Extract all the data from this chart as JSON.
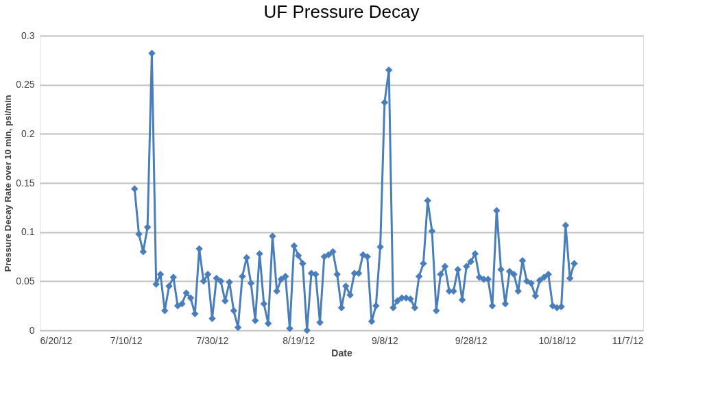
{
  "chart_data": {
    "type": "line",
    "title": "UF Pressure Decay",
    "xlabel": "Date",
    "ylabel": "Pressure Decay Rate over 10 min, psi/min",
    "x": [
      "2012-07-12",
      "2012-07-13",
      "2012-07-14",
      "2012-07-15",
      "2012-07-16",
      "2012-07-17",
      "2012-07-18",
      "2012-07-19",
      "2012-07-20",
      "2012-07-21",
      "2012-07-22",
      "2012-07-23",
      "2012-07-24",
      "2012-07-25",
      "2012-07-26",
      "2012-07-27",
      "2012-07-28",
      "2012-07-29",
      "2012-07-30",
      "2012-07-31",
      "2012-08-01",
      "2012-08-02",
      "2012-08-03",
      "2012-08-04",
      "2012-08-05",
      "2012-08-06",
      "2012-08-07",
      "2012-08-08",
      "2012-08-09",
      "2012-08-10",
      "2012-08-11",
      "2012-08-12",
      "2012-08-13",
      "2012-08-14",
      "2012-08-15",
      "2012-08-16",
      "2012-08-17",
      "2012-08-18",
      "2012-08-19",
      "2012-08-20",
      "2012-08-21",
      "2012-08-22",
      "2012-08-23",
      "2012-08-24",
      "2012-08-25",
      "2012-08-26",
      "2012-08-27",
      "2012-08-28",
      "2012-08-29",
      "2012-08-30",
      "2012-08-31",
      "2012-09-01",
      "2012-09-02",
      "2012-09-03",
      "2012-09-04",
      "2012-09-05",
      "2012-09-06",
      "2012-09-07",
      "2012-09-08",
      "2012-09-09",
      "2012-09-10",
      "2012-09-11",
      "2012-09-12",
      "2012-09-13",
      "2012-09-14",
      "2012-09-15",
      "2012-09-16",
      "2012-09-17",
      "2012-09-18",
      "2012-09-19",
      "2012-09-20",
      "2012-09-21",
      "2012-09-22",
      "2012-09-23",
      "2012-09-24",
      "2012-09-25",
      "2012-09-26",
      "2012-09-27",
      "2012-09-28",
      "2012-09-29",
      "2012-09-30",
      "2012-10-01",
      "2012-10-02",
      "2012-10-03",
      "2012-10-04",
      "2012-10-05",
      "2012-10-06",
      "2012-10-07",
      "2012-10-08",
      "2012-10-09",
      "2012-10-10",
      "2012-10-11",
      "2012-10-12",
      "2012-10-13",
      "2012-10-14",
      "2012-10-15",
      "2012-10-16",
      "2012-10-17",
      "2012-10-18",
      "2012-10-19",
      "2012-10-20",
      "2012-10-21",
      "2012-10-22"
    ],
    "series": [
      {
        "color": "#4a7ebb",
        "values": [
          0.144,
          0.098,
          0.08,
          0.105,
          0.282,
          0.047,
          0.057,
          0.02,
          0.045,
          0.054,
          0.025,
          0.027,
          0.038,
          0.033,
          0.017,
          0.083,
          0.05,
          0.057,
          0.012,
          0.053,
          0.05,
          0.03,
          0.049,
          0.02,
          0.003,
          0.055,
          0.074,
          0.048,
          0.01,
          0.078,
          0.027,
          0.007,
          0.096,
          0.04,
          0.052,
          0.055,
          0.002,
          0.086,
          0.076,
          0.068,
          0.0,
          0.058,
          0.057,
          0.008,
          0.075,
          0.077,
          0.08,
          0.057,
          0.023,
          0.045,
          0.036,
          0.058,
          0.058,
          0.077,
          0.075,
          0.009,
          0.025,
          0.085,
          0.232,
          0.265,
          0.023,
          0.03,
          0.033,
          0.033,
          0.032,
          0.023,
          0.055,
          0.068,
          0.132,
          0.101,
          0.02,
          0.057,
          0.065,
          0.04,
          0.04,
          0.062,
          0.031,
          0.065,
          0.07,
          0.078,
          0.054,
          0.052,
          0.052,
          0.025,
          0.122,
          0.062,
          0.027,
          0.06,
          0.057,
          0.04,
          0.071,
          0.05,
          0.048,
          0.035,
          0.051,
          0.054,
          0.057,
          0.025,
          0.023,
          0.024,
          0.107,
          0.053,
          0.068
        ]
      }
    ],
    "xlim": [
      "2012-06-20",
      "2012-11-07"
    ],
    "xticks": [
      {
        "value": "2012-06-20",
        "label": "6/20/12"
      },
      {
        "value": "2012-07-10",
        "label": "7/10/12"
      },
      {
        "value": "2012-07-30",
        "label": "7/30/12"
      },
      {
        "value": "2012-08-19",
        "label": "8/19/12"
      },
      {
        "value": "2012-09-08",
        "label": "9/8/12"
      },
      {
        "value": "2012-09-28",
        "label": "9/28/12"
      },
      {
        "value": "2012-10-18",
        "label": "10/18/12"
      },
      {
        "value": "2012-11-07",
        "label": "11/7/12"
      }
    ],
    "ylim": [
      0,
      0.3
    ],
    "yticks": [
      0,
      0.05,
      0.1,
      0.15,
      0.2,
      0.25,
      0.3
    ],
    "grid": "y",
    "marker": "diamond",
    "line_style": "solid"
  }
}
